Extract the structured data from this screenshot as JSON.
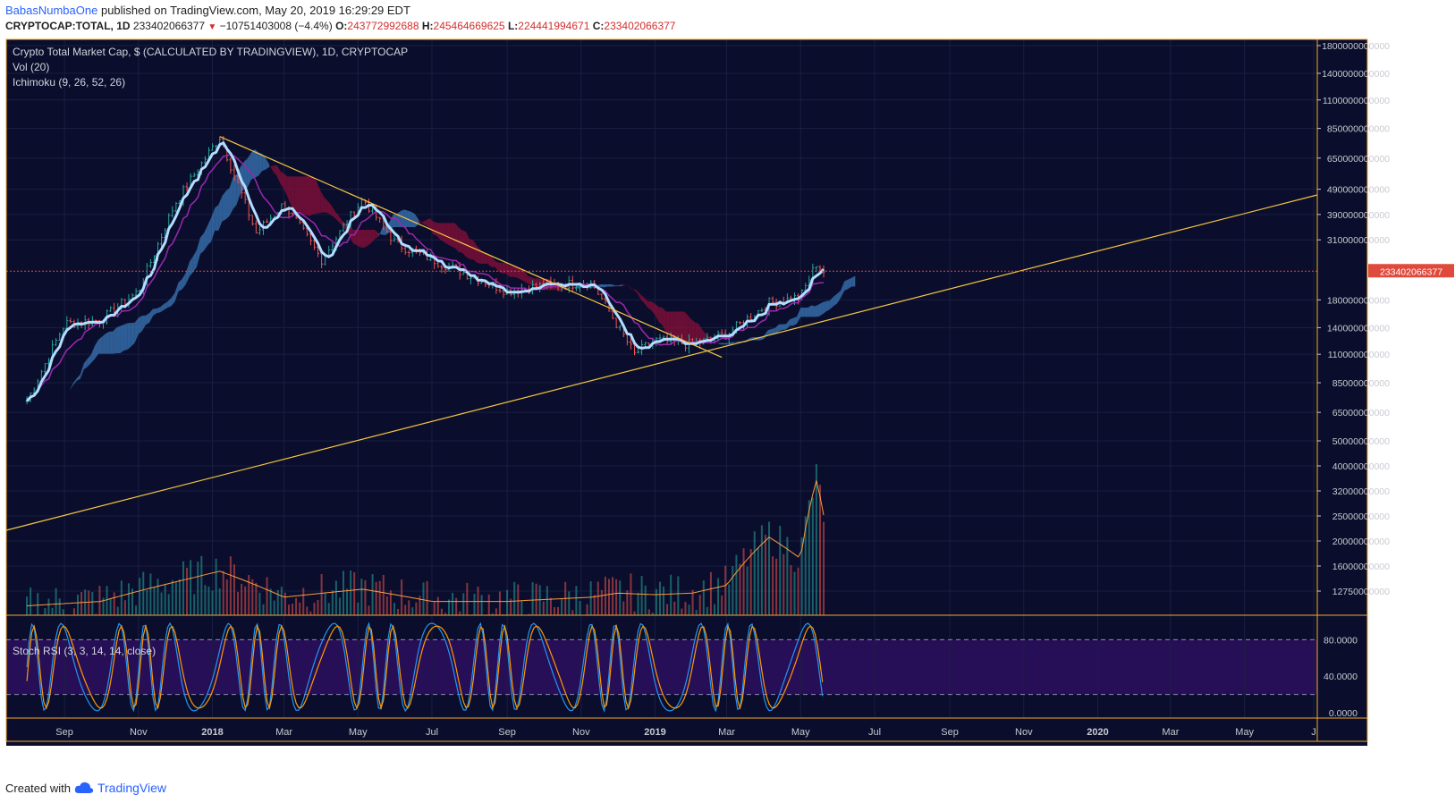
{
  "header": {
    "user": "BabasNumbaOne",
    "published_text": "published on TradingView.com, May 20, 2019 16:29:29 EDT",
    "symbol": "CRYPTOCAP:TOTAL, 1D",
    "last_value": "233402066377",
    "change": "−10751403008 (−4.4%)",
    "o_label": "O:",
    "o_value": "243772992688",
    "h_label": "H:",
    "h_value": "245464669625",
    "l_label": "L:",
    "l_value": "224441994671",
    "c_label": "C:",
    "c_value": "233402066377"
  },
  "legend": {
    "title": "Crypto Total Market Cap, $ (CALCULATED BY TRADINGVIEW), 1D, CRYPTOCAP",
    "vol": "Vol (20)",
    "ichimoku": "Ichimoku (9, 26, 52, 26)",
    "stoch": "Stoch RSI (3, 3, 14, 14, close)"
  },
  "footer": {
    "created_with": "Created with",
    "brand": "TradingView"
  },
  "colors": {
    "background": "#0a0e2c",
    "frame": "#f5a623",
    "price_up": "#26a69a",
    "price_down": "#ef5350",
    "tenkan": "#b3dcff",
    "kijun": "#9c27b0",
    "cloud_bull": "#3b78b8",
    "cloud_bear": "#8b0f3a",
    "trendline": "#f5c542",
    "last_price_tag": "#e04a3c",
    "stoch_k": "#2196f3",
    "stoch_d": "#ff9800",
    "stoch_band": "#2a0f5c"
  },
  "chart_data": {
    "type": "line",
    "title": "Crypto Total Market Cap, $ (CALCULATED BY TRADINGVIEW), 1D, CRYPTOCAP",
    "scale": "log",
    "price_axis_ticks": [
      "1800000000000",
      "1400000000000",
      "1100000000000",
      "850000000000",
      "650000000000",
      "490000000000",
      "390000000000",
      "310000000000",
      "180000000000",
      "140000000000",
      "110000000000",
      "85000000000",
      "65000000000",
      "50000000000",
      "40000000000",
      "32000000000",
      "25000000000",
      "20000000000",
      "16000000000",
      "12750000000"
    ],
    "last_price_label": "233402066377",
    "x_labels": [
      "Sep",
      "Nov",
      "2018",
      "Mar",
      "May",
      "Jul",
      "Sep",
      "Nov",
      "2019",
      "Mar",
      "May",
      "Jul",
      "Sep",
      "Nov",
      "2020",
      "Mar",
      "May",
      "J"
    ],
    "stoch_ticks": [
      "80.0000",
      "40.0000",
      "0.0000"
    ],
    "series": [
      {
        "name": "CRYPTOCAP:TOTAL",
        "x": [
          "2017-08-01",
          "2017-09-01",
          "2017-10-01",
          "2017-11-01",
          "2017-12-01",
          "2018-01-07",
          "2018-02-06",
          "2018-03-01",
          "2018-04-01",
          "2018-05-05",
          "2018-06-01",
          "2018-07-01",
          "2018-08-01",
          "2018-09-01",
          "2018-10-01",
          "2018-11-10",
          "2018-12-15",
          "2019-01-01",
          "2019-02-01",
          "2019-03-01",
          "2019-04-05",
          "2019-05-01",
          "2019-05-14",
          "2019-05-20"
        ],
        "values": [
          72000000000,
          145000000000,
          150000000000,
          195000000000,
          430000000000,
          790000000000,
          330000000000,
          430000000000,
          260000000000,
          450000000000,
          300000000000,
          260000000000,
          225000000000,
          195000000000,
          205000000000,
          210000000000,
          110000000000,
          125000000000,
          120000000000,
          132000000000,
          175000000000,
          185000000000,
          250000000000,
          233402066377
        ]
      },
      {
        "name": "Vol",
        "x": [
          "2017-08-01",
          "2017-10-01",
          "2017-12-15",
          "2018-01-07",
          "2018-03-01",
          "2018-05-05",
          "2018-07-01",
          "2018-09-01",
          "2018-11-10",
          "2018-12-01",
          "2019-01-01",
          "2019-02-01",
          "2019-03-01",
          "2019-04-05",
          "2019-05-01",
          "2019-05-14",
          "2019-05-20"
        ],
        "values": [
          12500000000,
          13000000000,
          16000000000,
          17000000000,
          13500000000,
          14500000000,
          13000000000,
          13000000000,
          13500000000,
          14000000000,
          13800000000,
          14000000000,
          15000000000,
          23000000000,
          19000000000,
          38000000000,
          28000000000
        ]
      }
    ]
  }
}
